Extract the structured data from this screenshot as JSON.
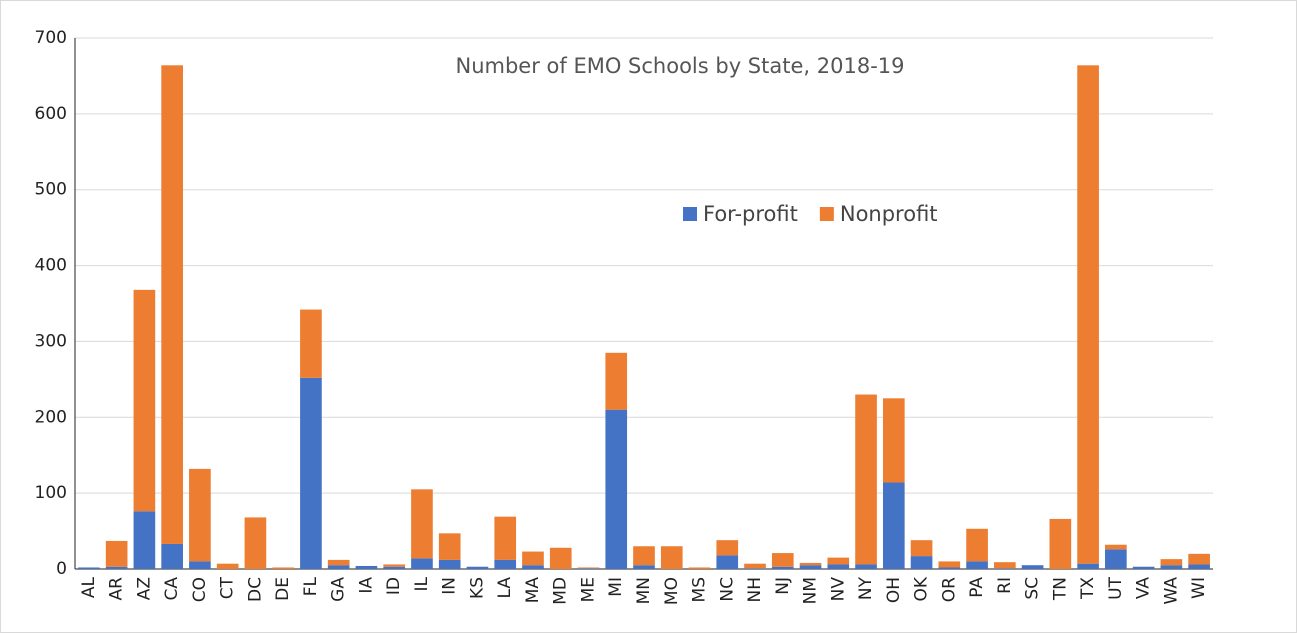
{
  "chart_data": {
    "type": "stacked_bar",
    "title": "Number of EMO Schools by State, 2018-19",
    "categories": [
      "AL",
      "AR",
      "AZ",
      "CA",
      "CO",
      "CT",
      "DC",
      "DE",
      "FL",
      "GA",
      "IA",
      "ID",
      "IL",
      "IN",
      "KS",
      "LA",
      "MA",
      "MD",
      "ME",
      "MI",
      "MN",
      "MO",
      "MS",
      "NC",
      "NH",
      "NJ",
      "NM",
      "NV",
      "NY",
      "OH",
      "OK",
      "OR",
      "PA",
      "RI",
      "SC",
      "TN",
      "TX",
      "UT",
      "VA",
      "WA",
      "WI"
    ],
    "series": [
      {
        "name": "For-profit",
        "color": "#4472c4",
        "values": [
          2,
          3,
          76,
          33,
          10,
          0,
          0,
          0,
          252,
          5,
          4,
          3,
          14,
          12,
          3,
          12,
          5,
          0,
          1,
          210,
          5,
          0,
          0,
          18,
          1,
          3,
          5,
          6,
          6,
          114,
          17,
          2,
          10,
          1,
          5,
          0,
          7,
          26,
          3,
          5,
          6
        ]
      },
      {
        "name": "Nonprofit",
        "color": "#ed7d31",
        "values": [
          0,
          34,
          292,
          631,
          122,
          7,
          68,
          2,
          90,
          7,
          0,
          3,
          91,
          35,
          0,
          57,
          18,
          28,
          1,
          75,
          25,
          30,
          2,
          20,
          6,
          18,
          3,
          9,
          224,
          111,
          21,
          8,
          43,
          8,
          0,
          66,
          657,
          6,
          0,
          8,
          14
        ]
      }
    ],
    "ylim": [
      0,
      700
    ],
    "yticks": [
      0,
      100,
      200,
      300,
      400,
      500,
      600,
      700
    ],
    "grid": true
  }
}
